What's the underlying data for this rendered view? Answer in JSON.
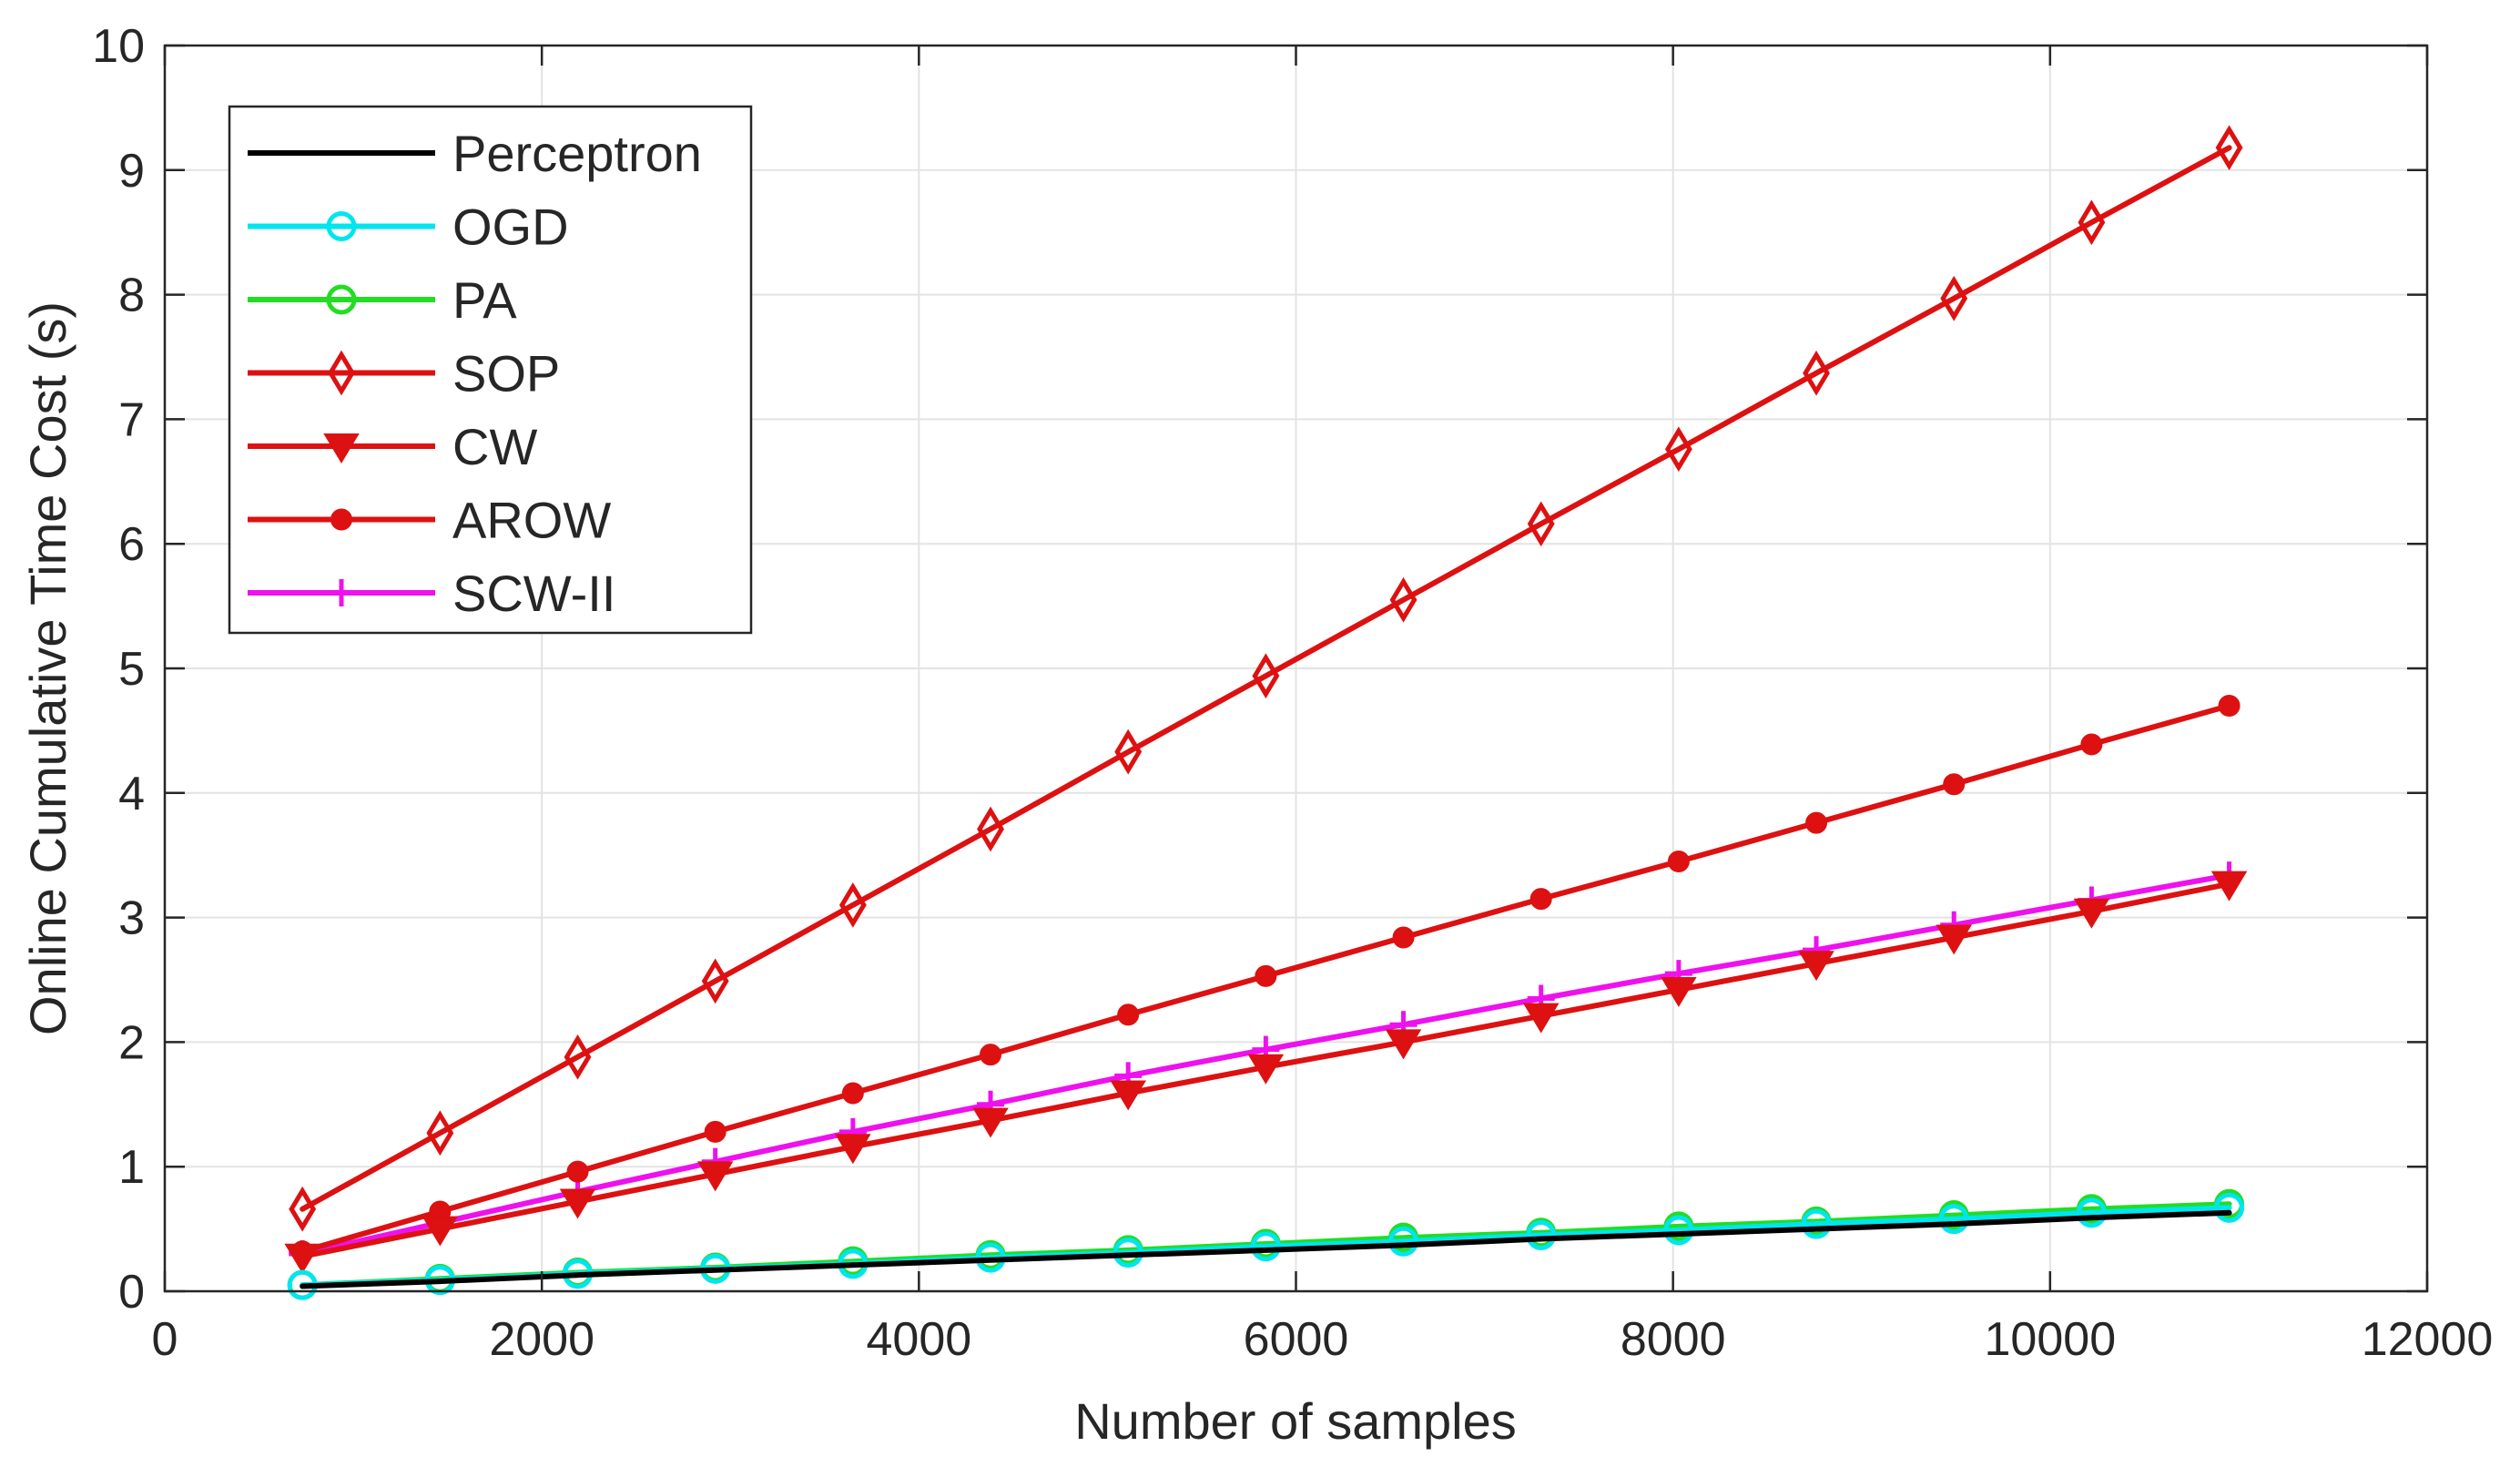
{
  "chart_data": {
    "type": "line",
    "title": "",
    "xlabel": "Number of samples",
    "ylabel": "Online Cumulative Time Cost (s)",
    "xlim": [
      0,
      12000
    ],
    "ylim": [
      0,
      10
    ],
    "xticks": [
      0,
      2000,
      4000,
      6000,
      8000,
      10000,
      12000
    ],
    "yticks": [
      0,
      1,
      2,
      3,
      4,
      5,
      6,
      7,
      8,
      9,
      10
    ],
    "grid": true,
    "legend_position": "top-left",
    "x": [
      730,
      1460,
      2190,
      2920,
      3650,
      4380,
      5110,
      5840,
      6570,
      7300,
      8030,
      8760,
      9490,
      10220,
      10950
    ],
    "series": [
      {
        "name": "Perceptron",
        "color": "#000000",
        "marker": "none",
        "values": [
          0.04,
          0.08,
          0.13,
          0.17,
          0.21,
          0.25,
          0.29,
          0.33,
          0.37,
          0.42,
          0.46,
          0.5,
          0.54,
          0.59,
          0.63
        ]
      },
      {
        "name": "OGD",
        "color": "#00e5ee",
        "marker": "circle",
        "values": [
          0.05,
          0.09,
          0.14,
          0.18,
          0.22,
          0.27,
          0.31,
          0.36,
          0.4,
          0.45,
          0.49,
          0.54,
          0.58,
          0.63,
          0.67
        ]
      },
      {
        "name": "PA",
        "color": "#22dd22",
        "marker": "circle",
        "values": [
          0.05,
          0.1,
          0.15,
          0.19,
          0.24,
          0.29,
          0.33,
          0.38,
          0.43,
          0.47,
          0.52,
          0.56,
          0.61,
          0.66,
          0.7
        ]
      },
      {
        "name": "SOP",
        "color": "#dd1111",
        "marker": "diamond",
        "values": [
          0.66,
          1.27,
          1.88,
          2.49,
          3.1,
          3.71,
          4.33,
          4.94,
          5.55,
          6.16,
          6.76,
          7.37,
          7.97,
          8.58,
          9.18
        ]
      },
      {
        "name": "CW",
        "color": "#dd1111",
        "marker": "triangle-down",
        "values": [
          0.28,
          0.5,
          0.72,
          0.94,
          1.16,
          1.37,
          1.59,
          1.8,
          2.0,
          2.21,
          2.42,
          2.63,
          2.84,
          3.05,
          3.27
        ]
      },
      {
        "name": "AROW",
        "color": "#dd1111",
        "marker": "dot",
        "values": [
          0.32,
          0.64,
          0.96,
          1.28,
          1.59,
          1.9,
          2.22,
          2.53,
          2.84,
          3.15,
          3.45,
          3.76,
          4.07,
          4.39,
          4.7
        ]
      },
      {
        "name": "SCW-II",
        "color": "#ee11ee",
        "marker": "plus",
        "values": [
          0.3,
          0.55,
          0.8,
          1.04,
          1.28,
          1.5,
          1.73,
          1.94,
          2.14,
          2.35,
          2.55,
          2.74,
          2.94,
          3.14,
          3.34
        ]
      }
    ]
  }
}
